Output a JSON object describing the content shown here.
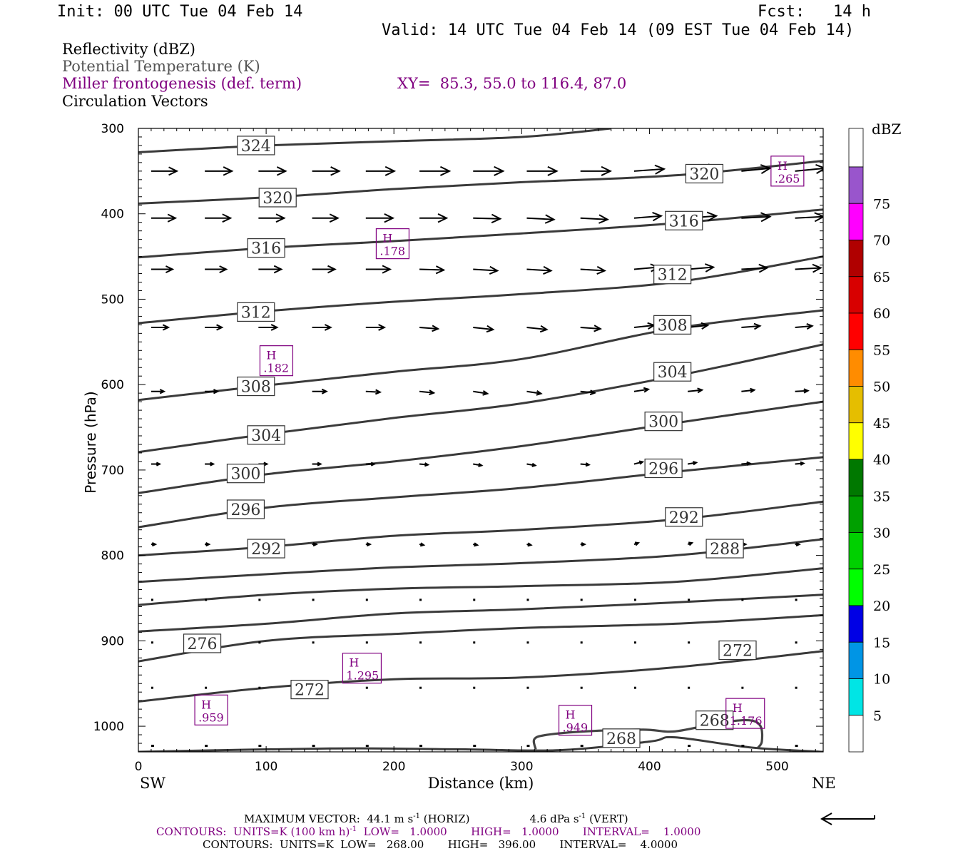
{
  "header": {
    "init": "Init: 00 UTC Tue 04 Feb 14",
    "fcst": "Fcst:   14 h",
    "valid": "Valid: 14 UTC Tue 04 Feb 14 (09 EST Tue 04 Feb 14)"
  },
  "legend": {
    "field1": "Reflectivity (dBZ)",
    "field2": "Potential Temperature (K)",
    "field3": "Miller frontogenesis (def. term)",
    "xy": "XY=  85.3, 55.0 to 116.4, 87.0",
    "field4": "Circulation Vectors"
  },
  "colors": {
    "theta": "#3a3a3a",
    "fronto": "#800080",
    "vectors": "#000000"
  },
  "colorbar": {
    "title": "dBZ",
    "levels": [
      "5",
      "10",
      "15",
      "20",
      "25",
      "30",
      "35",
      "40",
      "45",
      "50",
      "55",
      "60",
      "65",
      "70",
      "75"
    ],
    "colors": [
      "#ffffff",
      "#00e5e5",
      "#0095e5",
      "#0000e5",
      "#00ff00",
      "#00d000",
      "#00a000",
      "#007800",
      "#ffff00",
      "#e5be00",
      "#ff8c00",
      "#ff0000",
      "#d80000",
      "#b00000",
      "#ff00ff",
      "#9955cc",
      "#ffffff"
    ]
  },
  "footer": {
    "max_vector": "MAXIMUM VECTOR:  44.1 m s",
    "mv_exp": "-1",
    "mv_horiz": " (HORIZ)",
    "mv_vert": "4.6 dPa s",
    "mv_vert_exp": "-1",
    "mv_vert_tail": " (VERT)",
    "contours1_a": "CONTOURS:  UNITS=K (100 km h)",
    "contours1_exp": "-1",
    "contours1_b": "  LOW=   1.0000       HIGH=   1.0000       INTERVAL=    1.0000",
    "contours2": "CONTOURS:  UNITS=K  LOW=   268.00       HIGH=   396.00       INTERVAL=    4.0000"
  },
  "chart_data": {
    "type": "line",
    "xlabel": "Distance (km)",
    "ylabel": "Pressure (hPa)",
    "xlim": [
      0,
      536
    ],
    "ylim": [
      1030,
      300
    ],
    "y_scale": "linear, inverted",
    "xticks": [
      0,
      100,
      200,
      300,
      400,
      500
    ],
    "yticks": [
      300,
      400,
      500,
      600,
      700,
      800,
      900,
      1000
    ],
    "x_end_labels": {
      "left": "SW",
      "right": "NE"
    },
    "theta_contours": [
      {
        "k": 324,
        "label": "324",
        "pts": [
          [
            0,
            328
          ],
          [
            100,
            320
          ],
          [
            200,
            315
          ],
          [
            300,
            310
          ],
          [
            370,
            300
          ]
        ]
      },
      {
        "k": 320,
        "label": "320",
        "pts": [
          [
            0,
            388
          ],
          [
            110,
            380
          ],
          [
            200,
            371
          ],
          [
            300,
            363
          ],
          [
            420,
            355
          ],
          [
            536,
            338
          ]
        ]
      },
      {
        "k": 316,
        "label": "316",
        "pts": [
          [
            0,
            451
          ],
          [
            100,
            440
          ],
          [
            200,
            432
          ],
          [
            300,
            423
          ],
          [
            420,
            411
          ],
          [
            536,
            395
          ]
        ]
      },
      {
        "k": 312,
        "label": "312",
        "pts": [
          [
            0,
            528
          ],
          [
            100,
            514
          ],
          [
            200,
            503
          ],
          [
            300,
            494
          ],
          [
            420,
            480
          ],
          [
            536,
            450
          ]
        ]
      },
      {
        "k": 308,
        "label": "308",
        "pts": [
          [
            0,
            618
          ],
          [
            100,
            601
          ],
          [
            200,
            585
          ],
          [
            300,
            570
          ],
          [
            420,
            534
          ],
          [
            536,
            513
          ]
        ]
      },
      {
        "k": 304,
        "label": "304",
        "pts": [
          [
            0,
            679
          ],
          [
            100,
            658
          ],
          [
            200,
            639
          ],
          [
            300,
            622
          ],
          [
            420,
            590
          ],
          [
            536,
            553
          ]
        ]
      },
      {
        "k": 300,
        "label": "300",
        "pts": [
          [
            0,
            727
          ],
          [
            100,
            705
          ],
          [
            200,
            690
          ],
          [
            300,
            672
          ],
          [
            420,
            645
          ],
          [
            536,
            620
          ]
        ]
      },
      {
        "k": 296,
        "label": "296",
        "pts": [
          [
            0,
            767
          ],
          [
            100,
            744
          ],
          [
            200,
            732
          ],
          [
            300,
            721
          ],
          [
            420,
            702
          ],
          [
            536,
            685
          ]
        ]
      },
      {
        "k": 292,
        "label": "292",
        "pts": [
          [
            0,
            800
          ],
          [
            100,
            790
          ],
          [
            200,
            777
          ],
          [
            300,
            770
          ],
          [
            420,
            758
          ],
          [
            536,
            737
          ]
        ]
      },
      {
        "k": 288,
        "label": "288",
        "pts": [
          [
            0,
            831
          ],
          [
            100,
            822
          ],
          [
            200,
            814
          ],
          [
            300,
            809
          ],
          [
            420,
            800
          ],
          [
            536,
            781
          ]
        ]
      },
      {
        "k": 284,
        "label": "",
        "pts": [
          [
            0,
            858
          ],
          [
            100,
            846
          ],
          [
            200,
            839
          ],
          [
            300,
            836
          ],
          [
            420,
            831
          ],
          [
            536,
            815
          ]
        ]
      },
      {
        "k": 280,
        "label": "",
        "pts": [
          [
            0,
            889
          ],
          [
            100,
            880
          ],
          [
            200,
            868
          ],
          [
            300,
            863
          ],
          [
            420,
            855
          ],
          [
            536,
            846
          ]
        ]
      },
      {
        "k": 276,
        "label": "276",
        "pts": [
          [
            0,
            924
          ],
          [
            100,
            900
          ],
          [
            200,
            892
          ],
          [
            300,
            885
          ],
          [
            420,
            880
          ],
          [
            536,
            870
          ]
        ]
      },
      {
        "k": 272,
        "label": "272",
        "pts": [
          [
            0,
            971
          ],
          [
            100,
            955
          ],
          [
            200,
            945
          ],
          [
            300,
            943
          ],
          [
            420,
            931
          ],
          [
            536,
            912
          ]
        ]
      },
      {
        "k": 268,
        "label": "268",
        "pts": [
          [
            0,
            1030
          ],
          [
            150,
            1026
          ],
          [
            250,
            1027
          ],
          [
            330,
            1028
          ],
          [
            400,
            1018
          ],
          [
            420,
            1013
          ],
          [
            480,
            1025
          ],
          [
            536,
            1030
          ]
        ]
      }
    ],
    "theta_label_positions": [
      {
        "label": "324",
        "x": 92,
        "p": 320
      },
      {
        "label": "320",
        "x": 109,
        "p": 381
      },
      {
        "label": "320",
        "x": 443,
        "p": 353
      },
      {
        "label": "316",
        "x": 100,
        "p": 440
      },
      {
        "label": "316",
        "x": 427,
        "p": 408
      },
      {
        "label": "312",
        "x": 92,
        "p": 515
      },
      {
        "label": "312",
        "x": 418,
        "p": 471
      },
      {
        "label": "308",
        "x": 92,
        "p": 602
      },
      {
        "label": "308",
        "x": 418,
        "p": 530
      },
      {
        "label": "304",
        "x": 100,
        "p": 659
      },
      {
        "label": "304",
        "x": 418,
        "p": 585
      },
      {
        "label": "300",
        "x": 84,
        "p": 704
      },
      {
        "label": "300",
        "x": 411,
        "p": 643
      },
      {
        "label": "296",
        "x": 84,
        "p": 746
      },
      {
        "label": "296",
        "x": 411,
        "p": 698
      },
      {
        "label": "292",
        "x": 100,
        "p": 792
      },
      {
        "label": "292",
        "x": 427,
        "p": 755
      },
      {
        "label": "288",
        "x": 459,
        "p": 792
      },
      {
        "label": "276",
        "x": 50,
        "p": 903
      },
      {
        "label": "272",
        "x": 134,
        "p": 957
      },
      {
        "label": "272",
        "x": 469,
        "p": 911
      },
      {
        "label": "268",
        "x": 378,
        "p": 1014
      },
      {
        "label": "268",
        "x": 451,
        "p": 993
      }
    ],
    "fronto_maxima": [
      {
        "h": "H",
        "value": ".265",
        "x": 508,
        "p": 350
      },
      {
        "h": "H",
        "value": ".178",
        "x": 199,
        "p": 435
      },
      {
        "h": "H",
        "value": ".182",
        "x": 108,
        "p": 572
      },
      {
        "h": "H",
        "value": "1.295",
        "x": 175,
        "p": 932
      },
      {
        "h": "H",
        "value": ".959",
        "x": 57,
        "p": 981
      },
      {
        "h": "H",
        "value": ".949",
        "x": 342,
        "p": 993
      },
      {
        "h": "H",
        "value": "1.176",
        "x": 475,
        "p": 985
      }
    ],
    "fronto_contour": {
      "level": 1.0,
      "pts": [
        [
          311,
          1027
        ],
        [
          310,
          1015
        ],
        [
          320,
          1010
        ],
        [
          350,
          1006
        ],
        [
          395,
          1004
        ],
        [
          420,
          1006
        ],
        [
          455,
          996
        ],
        [
          478,
          993
        ],
        [
          487,
          1000
        ],
        [
          488,
          1018
        ],
        [
          485,
          1025
        ]
      ]
    },
    "vector_rows": [
      {
        "p": 350,
        "xs": [
          10,
          52,
          94,
          136,
          178,
          220,
          262,
          304,
          346,
          388,
          430,
          472,
          514,
          536
        ],
        "u": [
          36,
          38,
          38,
          38,
          40,
          42,
          42,
          42,
          42,
          42,
          42,
          40,
          42,
          10
        ],
        "dy": [
          0,
          0,
          0,
          0,
          0,
          0,
          0,
          0,
          0,
          -3,
          -5,
          -4,
          -4,
          0
        ]
      },
      {
        "p": 405,
        "xs": [
          10,
          52,
          94,
          136,
          178,
          220,
          262,
          304,
          346,
          388,
          430,
          472,
          514,
          536
        ],
        "u": [
          34,
          36,
          36,
          36,
          38,
          38,
          38,
          38,
          38,
          38,
          40,
          40,
          40,
          10
        ],
        "dy": [
          0,
          0,
          0,
          0,
          0,
          0,
          1,
          2,
          2,
          -3,
          -3,
          -2,
          -2,
          0
        ]
      },
      {
        "p": 465,
        "xs": [
          10,
          52,
          94,
          136,
          178,
          220,
          262,
          304,
          346,
          388,
          430,
          472,
          514
        ],
        "u": [
          30,
          30,
          32,
          32,
          34,
          34,
          34,
          34,
          34,
          34,
          36,
          36,
          36
        ],
        "dy": [
          0,
          0,
          0,
          0,
          0,
          1,
          2,
          2,
          2,
          -3,
          -3,
          -2,
          -2
        ]
      },
      {
        "p": 533,
        "xs": [
          10,
          52,
          94,
          136,
          178,
          220,
          262,
          304,
          346,
          388,
          430,
          472,
          514
        ],
        "u": [
          24,
          24,
          26,
          26,
          26,
          26,
          28,
          28,
          28,
          28,
          28,
          26,
          24
        ],
        "dy": [
          0,
          0,
          0,
          0,
          0,
          2,
          3,
          3,
          2,
          -3,
          -3,
          -2,
          -2
        ]
      },
      {
        "p": 608,
        "xs": [
          10,
          52,
          94,
          136,
          178,
          220,
          262,
          304,
          346,
          388,
          430,
          472,
          514
        ],
        "u": [
          18,
          18,
          20,
          20,
          20,
          20,
          20,
          20,
          20,
          20,
          20,
          18,
          18
        ],
        "dy": [
          0,
          0,
          0,
          0,
          1,
          2,
          3,
          3,
          2,
          -3,
          -2,
          -2,
          -1
        ]
      },
      {
        "p": 693,
        "xs": [
          10,
          52,
          94,
          136,
          178,
          220,
          262,
          304,
          346,
          388,
          430,
          472,
          514
        ],
        "u": [
          12,
          12,
          12,
          12,
          12,
          12,
          12,
          12,
          12,
          12,
          12,
          12,
          12
        ],
        "dy": [
          0,
          0,
          0,
          0,
          0,
          1,
          2,
          2,
          1,
          -3,
          -2,
          -1,
          -1
        ]
      },
      {
        "p": 787,
        "xs": [
          10,
          52,
          94,
          136,
          178,
          220,
          262,
          304,
          346,
          388,
          430,
          472,
          514
        ],
        "u": [
          6,
          6,
          6,
          6,
          6,
          6,
          6,
          6,
          6,
          6,
          6,
          6,
          6
        ],
        "dy": [
          0,
          0,
          0,
          0,
          0,
          1,
          1,
          1,
          0,
          -2,
          -2,
          0,
          0
        ]
      },
      {
        "p": 852,
        "xs": [
          10,
          52,
          94,
          136,
          178,
          220,
          262,
          304,
          346,
          388,
          430,
          472,
          514
        ],
        "u": [
          3,
          3,
          3,
          3,
          3,
          3,
          3,
          3,
          3,
          3,
          3,
          3,
          3
        ],
        "dy": [
          0,
          0,
          0,
          0,
          0,
          0,
          1,
          1,
          0,
          -1,
          -1,
          0,
          0
        ]
      },
      {
        "p": 902,
        "xs": [
          10,
          52,
          94,
          136,
          178,
          220,
          262,
          304,
          346,
          388,
          430,
          472,
          514
        ],
        "u": [
          2,
          2,
          2,
          2,
          2,
          2,
          2,
          2,
          2,
          2,
          2,
          2,
          2
        ],
        "dy": [
          0,
          0,
          0,
          0,
          0,
          0,
          0,
          1,
          0,
          -1,
          -1,
          -1,
          0
        ]
      },
      {
        "p": 955,
        "xs": [
          10,
          52,
          94,
          136,
          178,
          220,
          262,
          304,
          346,
          388,
          430,
          472,
          514
        ],
        "u": [
          2,
          2,
          2,
          2,
          2,
          2,
          2,
          2,
          2,
          2,
          2,
          2,
          2
        ],
        "dy": [
          0,
          0,
          0,
          0,
          0,
          0,
          0,
          1,
          0,
          -1,
          -1,
          -1,
          0
        ]
      },
      {
        "p": 1023,
        "xs": [
          10,
          52,
          94,
          136,
          178,
          220,
          262,
          304,
          346,
          388,
          430,
          472,
          514
        ],
        "u": [
          4,
          4,
          4,
          4,
          4,
          4,
          4,
          4,
          4,
          4,
          4,
          4,
          4
        ],
        "dy": [
          0,
          0,
          0,
          0,
          0,
          0,
          0,
          0,
          0,
          0,
          0,
          0,
          0
        ]
      }
    ]
  }
}
